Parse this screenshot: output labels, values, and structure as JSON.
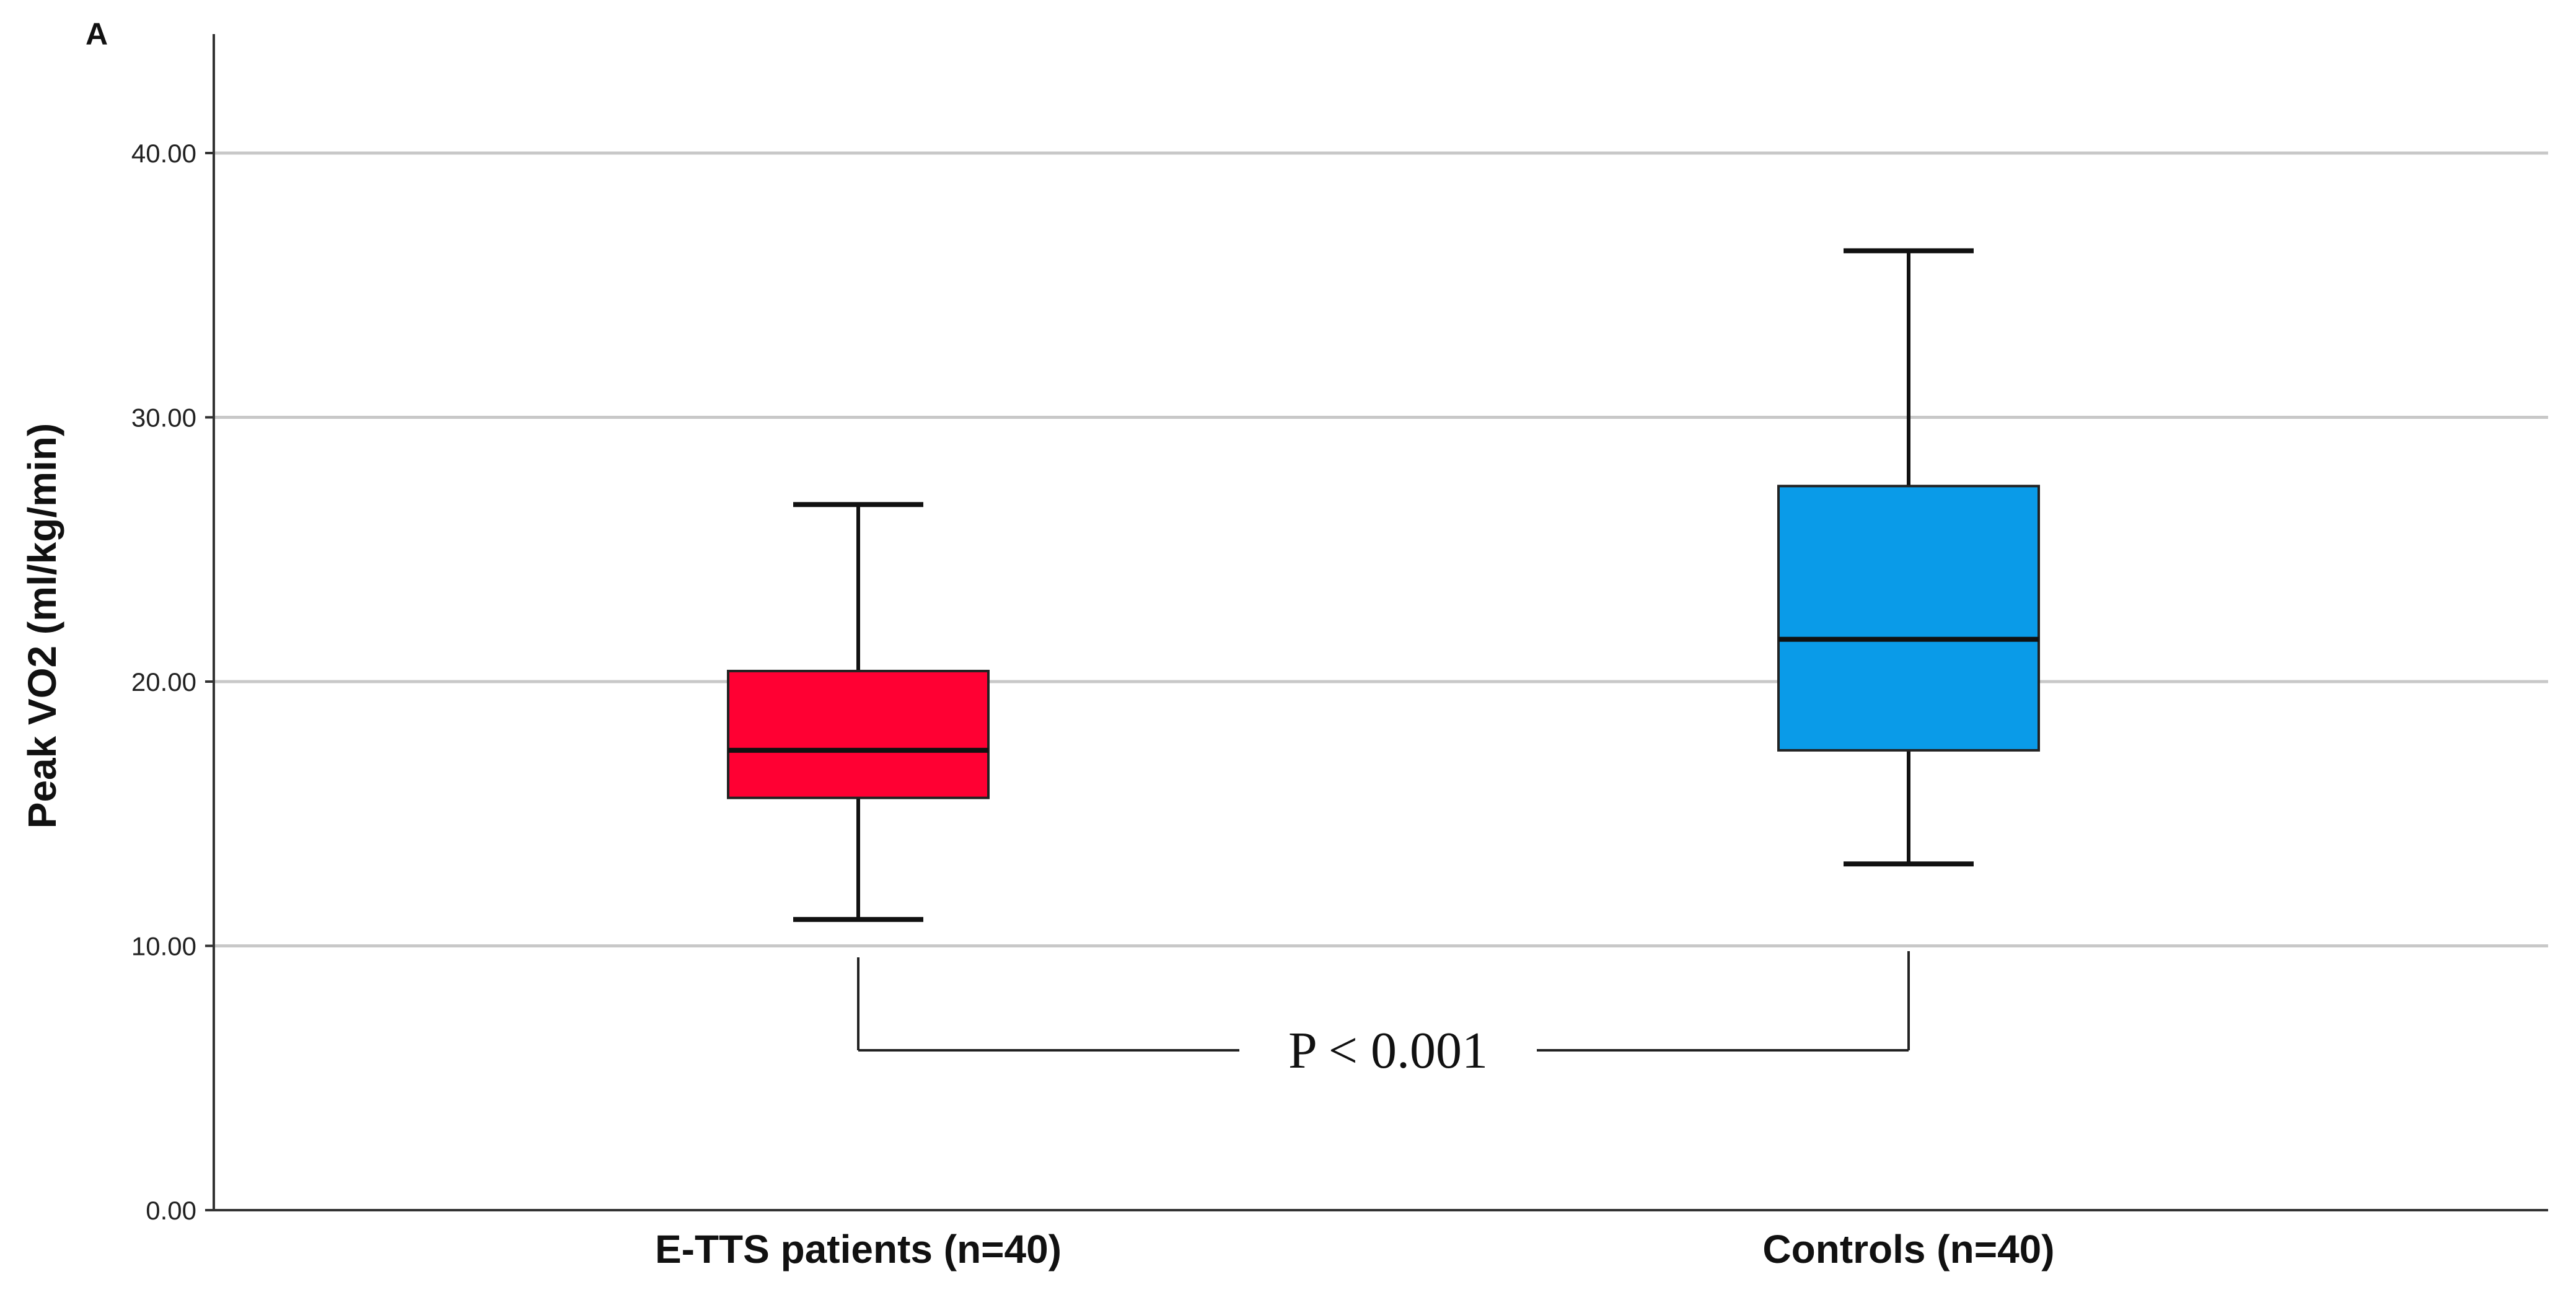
{
  "panel_label": "A",
  "chart_data": {
    "type": "boxplot",
    "ylabel": "Peak VO2 (ml/kg/min)",
    "xlabel": "",
    "ylim": [
      0,
      44.5
    ],
    "yticks": [
      0,
      10,
      20,
      30,
      40
    ],
    "ytick_labels": [
      "0.00",
      "10.00",
      "20.00",
      "30.00",
      "40.00"
    ],
    "grid": true,
    "categories": [
      "E-TTS patients (n=40)",
      "Controls (n=40)"
    ],
    "boxes": [
      {
        "min": 11.0,
        "q1": 15.6,
        "median": 17.4,
        "q3": 20.4,
        "max": 26.7,
        "color": "#FF0033"
      },
      {
        "min": 13.1,
        "q1": 17.4,
        "median": 21.6,
        "q3": 27.4,
        "max": 36.3,
        "color": "#0A9BE8"
      }
    ],
    "annotation": {
      "text": "P < 0.001",
      "bracket_y": 5.8
    }
  }
}
